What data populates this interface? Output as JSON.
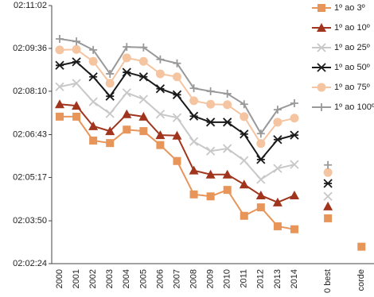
{
  "chart_data": {
    "type": "line",
    "categories": [
      "2000",
      "2001",
      "2002",
      "2003",
      "2004",
      "2005",
      "2006",
      "2007",
      "2008",
      "2009",
      "2010",
      "2011",
      "2012",
      "2013",
      "2014",
      "0 best",
      "corde"
    ],
    "ylim": [
      7344,
      7862
    ],
    "yticks": [
      {
        "value": 7344,
        "label": "02:02:24"
      },
      {
        "value": 7430,
        "label": "02:03:50"
      },
      {
        "value": 7517,
        "label": "02:05:17"
      },
      {
        "value": 7603,
        "label": "02:06:43"
      },
      {
        "value": 7690,
        "label": "02:08:10"
      },
      {
        "value": 7776,
        "label": "02:09:36"
      },
      {
        "value": 7862,
        "label": "02:11:02"
      }
    ],
    "legend": "upper right",
    "series": [
      {
        "name": "1º ao 3º",
        "color": "#e8955a",
        "marker": "square",
        "values": [
          7639,
          7639,
          7591,
          7586,
          7613,
          7610,
          7582,
          7550,
          7483,
          7479,
          7492,
          7440,
          7457,
          7419,
          7413,
          7435,
          7378
        ]
      },
      {
        "name": "1º ao 10º",
        "color": "#a0341c",
        "marker": "triangle",
        "values": [
          7664,
          7661,
          7620,
          7610,
          7644,
          7639,
          7602,
          7601,
          7531,
          7523,
          7523,
          7503,
          7481,
          7467,
          7481,
          7459,
          null
        ]
      },
      {
        "name": "1º ao 25º",
        "color": "#c8c8c8",
        "marker": "x",
        "values": [
          7699,
          7706,
          7669,
          7645,
          7687,
          7674,
          7644,
          7637,
          7589,
          7570,
          7575,
          7551,
          7513,
          7535,
          7543,
          7479,
          null
        ]
      },
      {
        "name": "1º ao 50º",
        "color": "#1a1a1a",
        "marker": "asterisk",
        "values": [
          7742,
          7749,
          7719,
          7680,
          7728,
          7719,
          7695,
          7683,
          7640,
          7628,
          7628,
          7604,
          7553,
          7593,
          7602,
          7505,
          null
        ]
      },
      {
        "name": "1º ao 75º",
        "color": "#f5c4a0",
        "marker": "circle",
        "values": [
          7773,
          7774,
          7750,
          7706,
          7757,
          7750,
          7725,
          7719,
          7671,
          7664,
          7663,
          7639,
          7585,
          7628,
          7636,
          7527,
          null
        ]
      },
      {
        "name": "1º ao 100º",
        "color": "#999999",
        "marker": "plus",
        "values": [
          7795,
          7790,
          7773,
          7725,
          7779,
          7778,
          7754,
          7746,
          7696,
          7690,
          7685,
          7664,
          7605,
          7653,
          7666,
          7542,
          null
        ]
      }
    ]
  }
}
